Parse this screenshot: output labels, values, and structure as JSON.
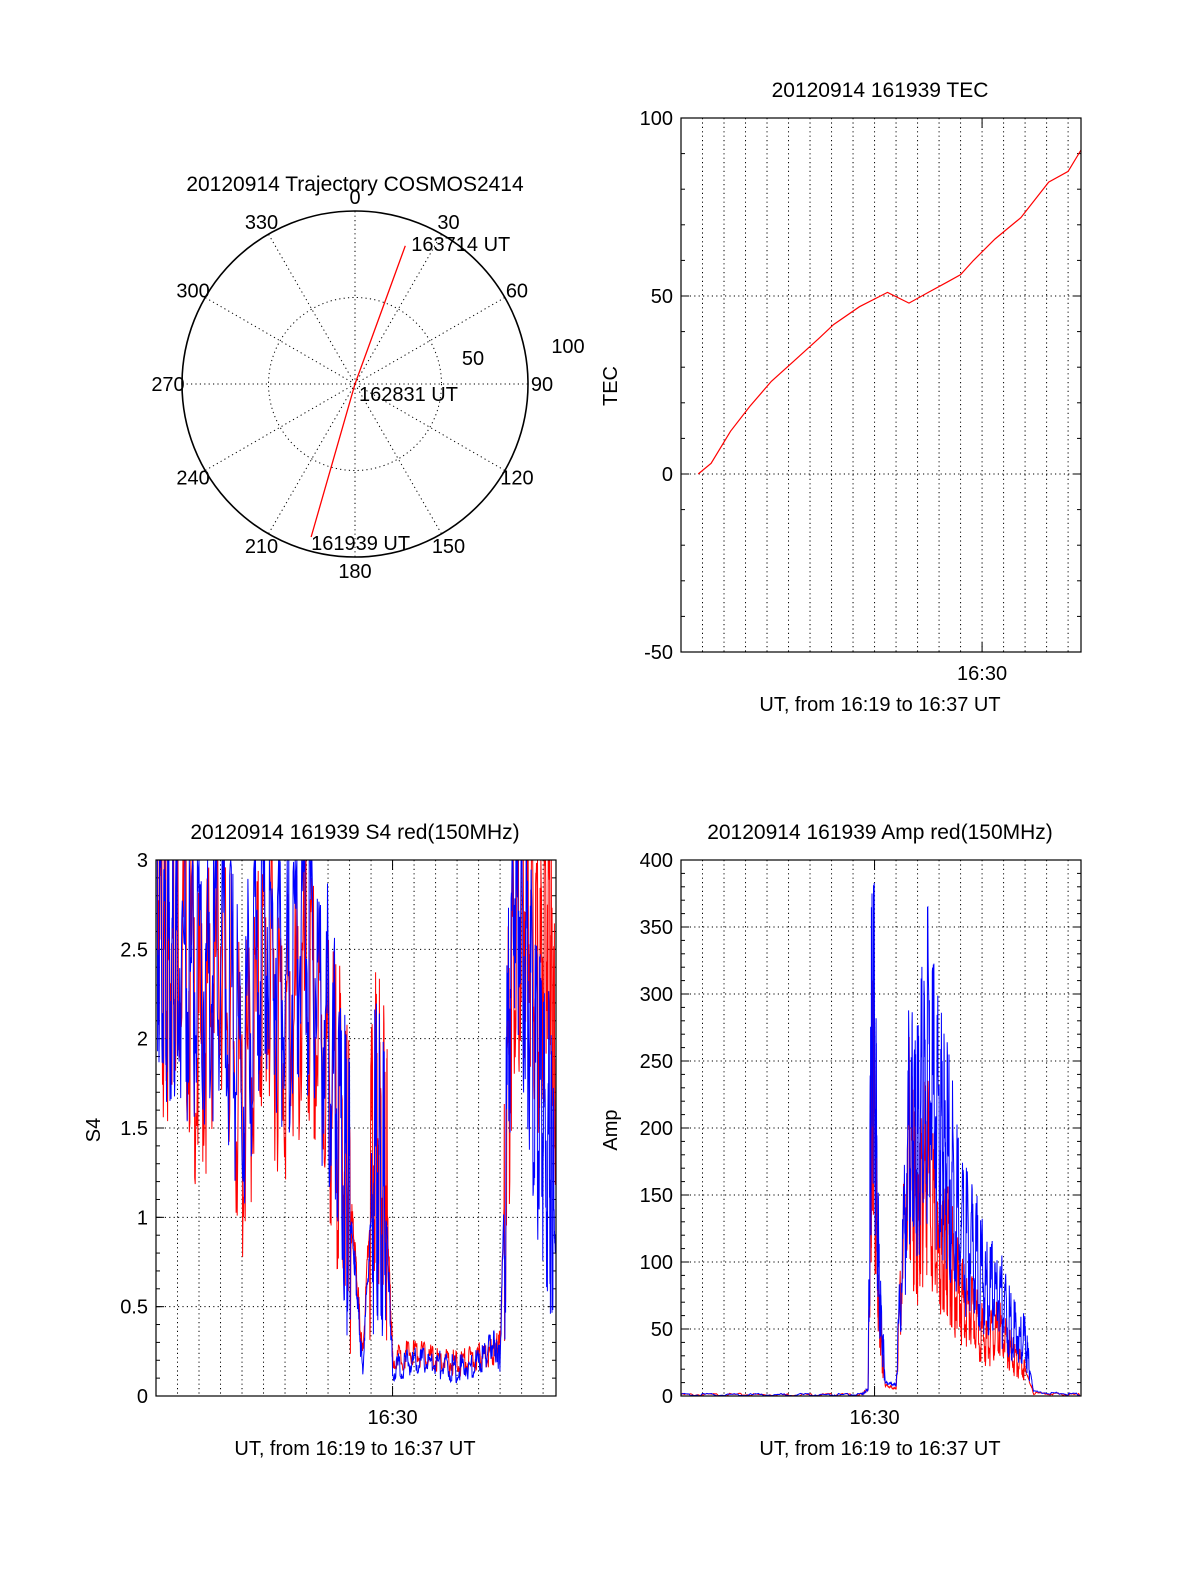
{
  "chart_data": [
    {
      "type": "polar",
      "title": "20120914 Trajectory COSMOS2414",
      "azimuth_labels": [
        "0",
        "30",
        "60",
        "90",
        "120",
        "150",
        "180",
        "210",
        "240",
        "270",
        "300",
        "330"
      ],
      "radius_labels": [
        "50",
        "100"
      ],
      "trajectory_color": "#ff0000",
      "trajectory": [
        {
          "azimuth": 196,
          "radius": 92,
          "time": "161939 UT"
        },
        {
          "azimuth": 0,
          "radius": 0,
          "time": "162831 UT"
        },
        {
          "azimuth": 20,
          "radius": 85,
          "time": "163714 UT"
        }
      ],
      "time_labels": [
        "161939 UT",
        "162831 UT",
        "163714 UT"
      ]
    },
    {
      "type": "line",
      "title": "20120914 161939 TEC",
      "xlabel": "UT, from 16:19 to 16:37 UT",
      "ylabel": "TEC",
      "ylim": [
        -50,
        100
      ],
      "yticks": [
        "100",
        "50",
        "0",
        "-50"
      ],
      "xtick": "16:30",
      "xlim_minutes": [
        16.0,
        34.6
      ],
      "series": [
        {
          "color": "#ff0000",
          "x": [
            16.8,
            17.4,
            18.3,
            19.2,
            20.2,
            21.3,
            22.4,
            23.1,
            24.3,
            25.6,
            26.6,
            27.5,
            28.4,
            29.0,
            29.6,
            30.6,
            31.8,
            33.1,
            34.0,
            34.6
          ],
          "y": [
            0,
            3,
            12,
            19,
            26,
            32,
            38,
            42,
            47,
            51,
            48,
            51,
            54,
            56,
            60,
            66,
            72,
            82,
            85,
            91
          ]
        }
      ]
    },
    {
      "type": "line",
      "title": "20120914 161939 S4 red(150MHz)",
      "xlabel": "UT, from 16:19 to 16:37 UT",
      "ylabel": "S4",
      "ylim": [
        0,
        3
      ],
      "yticks": [
        "3",
        "2.5",
        "2",
        "1.5",
        "1",
        "0.5",
        "0"
      ],
      "xtick": "16:30",
      "xlim_minutes": [
        19,
        37.6
      ],
      "series": [
        {
          "color": "#ff0000",
          "x": [
            19.0,
            19.5,
            20.0,
            21.0,
            22.0,
            23.0,
            24.0,
            25.0,
            26.0,
            27.0,
            27.8,
            28.2,
            28.6,
            29.2,
            29.7,
            30.0,
            31.0,
            32.0,
            33.0,
            34.0,
            34.7,
            35.0,
            35.6,
            36.2,
            36.8,
            37.3,
            37.6
          ],
          "y": [
            3.0,
            2.2,
            2.8,
            1.9,
            2.6,
            1.5,
            2.4,
            2.0,
            2.2,
            1.8,
            1.4,
            0.9,
            0.2,
            1.6,
            1.2,
            0.2,
            0.25,
            0.2,
            0.18,
            0.22,
            0.25,
            0.3,
            2.6,
            2.8,
            2.2,
            2.9,
            1.5
          ]
        },
        {
          "color": "#0000ff",
          "x": [
            19.0,
            19.5,
            20.0,
            21.0,
            22.0,
            23.0,
            24.0,
            25.0,
            26.0,
            27.0,
            27.8,
            28.2,
            28.6,
            29.2,
            29.7,
            30.0,
            31.0,
            32.0,
            33.0,
            34.0,
            34.7,
            35.0,
            35.6,
            36.2,
            36.8,
            37.3,
            37.6
          ],
          "y": [
            2.8,
            2.4,
            2.6,
            2.2,
            2.5,
            1.8,
            2.7,
            2.3,
            2.6,
            2.0,
            1.3,
            0.8,
            0.15,
            1.4,
            1.0,
            0.15,
            0.2,
            0.18,
            0.15,
            0.18,
            0.3,
            0.2,
            2.9,
            2.5,
            1.6,
            1.4,
            0.8
          ]
        }
      ]
    },
    {
      "type": "line",
      "title": "20120914 161939 Amp red(150MHz)",
      "xlabel": "UT, from 16:19 to 16:37 UT",
      "ylabel": "Amp",
      "ylim": [
        0,
        400
      ],
      "yticks": [
        "400",
        "350",
        "300",
        "250",
        "200",
        "150",
        "100",
        "50",
        "0"
      ],
      "xtick": "16:30",
      "xlim_minutes": [
        21.0,
        39.6
      ],
      "series": [
        {
          "color": "#ff0000",
          "x": [
            21.0,
            24.0,
            27.0,
            29.4,
            29.7,
            29.9,
            30.2,
            30.5,
            31.0,
            31.6,
            32.0,
            32.4,
            33.0,
            33.4,
            34.0,
            34.6,
            35.2,
            35.8,
            36.4,
            37.0,
            37.4,
            39.6
          ],
          "y": [
            1,
            1,
            1,
            1,
            5,
            240,
            60,
            8,
            5,
            190,
            120,
            180,
            90,
            110,
            70,
            60,
            40,
            50,
            30,
            20,
            2,
            1
          ]
        },
        {
          "color": "#0000ff",
          "x": [
            21.0,
            24.0,
            27.0,
            29.4,
            29.7,
            29.9,
            30.2,
            30.5,
            31.0,
            31.6,
            32.0,
            32.4,
            33.0,
            33.4,
            34.0,
            34.6,
            35.2,
            35.8,
            36.4,
            37.0,
            37.4,
            39.6
          ],
          "y": [
            1,
            1,
            1,
            1,
            5,
            325,
            90,
            10,
            8,
            200,
            190,
            250,
            200,
            180,
            120,
            110,
            80,
            75,
            50,
            40,
            3,
            1
          ]
        }
      ]
    }
  ]
}
